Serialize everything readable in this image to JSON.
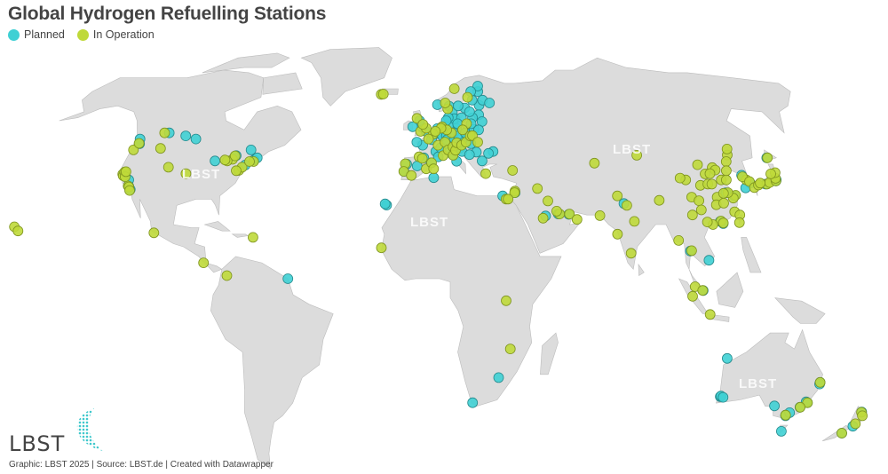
{
  "title": "Global Hydrogen Refuelling Stations",
  "legend": [
    {
      "label": "Planned",
      "color": "#3fd0d4"
    },
    {
      "label": "In Operation",
      "color": "#bfd93a"
    }
  ],
  "footer": "Graphic: LBST 2025 | Source: LBST.de | Created with Datawrapper",
  "logo_text": "LBST",
  "watermark": "LBST",
  "map": {
    "projection": "Robinson",
    "land_color": "#dcdcdc",
    "border_color": "#ffffff"
  },
  "stations": {
    "planned": [
      [
        -123,
        49
      ],
      [
        -122,
        47.5
      ],
      [
        -118,
        34
      ],
      [
        -117,
        33
      ],
      [
        -119,
        36
      ],
      [
        -79,
        43.7
      ],
      [
        -73.6,
        45.5
      ],
      [
        -71,
        42.3
      ],
      [
        -74,
        40.7
      ],
      [
        -70,
        43
      ],
      [
        -99,
        49
      ],
      [
        -104,
        50
      ],
      [
        -87,
        42
      ],
      [
        -112,
        51
      ],
      [
        -52,
        5
      ],
      [
        -9,
        38.7
      ],
      [
        -8,
        41
      ],
      [
        -3.7,
        40.4
      ],
      [
        2,
        41.4
      ],
      [
        -1,
        43
      ],
      [
        2.3,
        48.8
      ],
      [
        4,
        45
      ],
      [
        5,
        43.3
      ],
      [
        -1.5,
        47
      ],
      [
        -4,
        48
      ],
      [
        -0.1,
        51.5
      ],
      [
        -2,
        53
      ],
      [
        -3,
        55
      ],
      [
        -6,
        53
      ],
      [
        4.9,
        52.4
      ],
      [
        4.4,
        50.8
      ],
      [
        6,
        51
      ],
      [
        7,
        50
      ],
      [
        8.7,
        50
      ],
      [
        9,
        48.8
      ],
      [
        11.5,
        48.1
      ],
      [
        13.4,
        52.5
      ],
      [
        10,
        53.5
      ],
      [
        12,
        51
      ],
      [
        14,
        50
      ],
      [
        16.4,
        48.2
      ],
      [
        19,
        47.5
      ],
      [
        21,
        52.2
      ],
      [
        18,
        50
      ],
      [
        17,
        51
      ],
      [
        14,
        46
      ],
      [
        15,
        45
      ],
      [
        12.5,
        41.9
      ],
      [
        9,
        45.5
      ],
      [
        11,
        44
      ],
      [
        8.5,
        47.4
      ],
      [
        6.1,
        46.2
      ],
      [
        10.7,
        59.9
      ],
      [
        5.3,
        60.4
      ],
      [
        18,
        59.3
      ],
      [
        12,
        57.7
      ],
      [
        13,
        55.6
      ],
      [
        12.6,
        55.7
      ],
      [
        10,
        56
      ],
      [
        9,
        55
      ],
      [
        24.9,
        60.2
      ],
      [
        25.5,
        65
      ],
      [
        22,
        62
      ],
      [
        27,
        62
      ],
      [
        30,
        61
      ],
      [
        24,
        57
      ],
      [
        25,
        54.7
      ],
      [
        21,
        56
      ],
      [
        20,
        54
      ],
      [
        23,
        52
      ],
      [
        16,
        56
      ],
      [
        15,
        60
      ],
      [
        28,
        45
      ],
      [
        26,
        44.4
      ],
      [
        23,
        42
      ],
      [
        21,
        44.8
      ],
      [
        18,
        44
      ],
      [
        20,
        58
      ],
      [
        26,
        67
      ],
      [
        22,
        65
      ],
      [
        14,
        54
      ],
      [
        35,
        32
      ],
      [
        55,
        25.2
      ],
      [
        51,
        25.3
      ],
      [
        46,
        24.7
      ],
      [
        30,
        31
      ],
      [
        77,
        28.6
      ],
      [
        104,
        1.3
      ],
      [
        118,
        32
      ],
      [
        121,
        31
      ],
      [
        113,
        23
      ],
      [
        114,
        22.3
      ],
      [
        127,
        37.5
      ],
      [
        129,
        35
      ],
      [
        126.5,
        33.5
      ],
      [
        140,
        36
      ],
      [
        139.7,
        35.7
      ],
      [
        141,
        43
      ],
      [
        135,
        34.7
      ],
      [
        100,
        13.7
      ],
      [
        106.7,
        10.8
      ],
      [
        18.4,
        -33.9
      ],
      [
        28,
        -26
      ],
      [
        -15.4,
        28.1
      ],
      [
        -16,
        28.5
      ],
      [
        3,
        36.7
      ],
      [
        115.8,
        -32
      ],
      [
        116,
        -31.8
      ],
      [
        117,
        -32.2
      ],
      [
        144.9,
        -37.8
      ],
      [
        145,
        -38
      ],
      [
        151.2,
        -33.9
      ],
      [
        153,
        -27.5
      ],
      [
        147,
        -42.9
      ],
      [
        149,
        -35.3
      ],
      [
        138.6,
        -34.9
      ],
      [
        174.8,
        -36.8
      ],
      [
        175,
        -41.3
      ],
      [
        172.6,
        -43.5
      ],
      [
        146,
        -37
      ],
      [
        153,
        -28
      ],
      [
        150.5,
        -33.6
      ],
      [
        115,
        -20
      ]
    ],
    "in_operation": [
      [
        -157.8,
        21.3
      ],
      [
        -156,
        20
      ],
      [
        -122.4,
        37.8
      ],
      [
        -121.9,
        37.3
      ],
      [
        -122,
        38.5
      ],
      [
        -118.3,
        34.1
      ],
      [
        -117.9,
        33.8
      ],
      [
        -117.1,
        32.7
      ],
      [
        -121,
        37
      ],
      [
        -121.5,
        38.6
      ],
      [
        -123,
        45.5
      ],
      [
        -122.3,
        47.6
      ],
      [
        -114,
        51
      ],
      [
        -112,
        46
      ],
      [
        -105,
        40
      ],
      [
        -97,
        38
      ],
      [
        -80,
        42.5
      ],
      [
        -82,
        42
      ],
      [
        -83,
        42.3
      ],
      [
        -79.4,
        43.6
      ],
      [
        -76,
        39
      ],
      [
        -75,
        40
      ],
      [
        -71,
        41.8
      ],
      [
        -72.7,
        41.8
      ],
      [
        -77,
        38.9
      ],
      [
        -104,
        19.4
      ],
      [
        -84,
        10
      ],
      [
        -75,
        6
      ],
      [
        -66,
        18
      ],
      [
        -8.6,
        41.1
      ],
      [
        -9.1,
        38.7
      ],
      [
        -3,
        43.3
      ],
      [
        -1.6,
        42.8
      ],
      [
        0,
        39.5
      ],
      [
        2.2,
        41.4
      ],
      [
        -6,
        37.4
      ],
      [
        3,
        50.6
      ],
      [
        7,
        43.7
      ],
      [
        5,
        47
      ],
      [
        1,
        49
      ],
      [
        8,
        48
      ],
      [
        9.2,
        45.5
      ],
      [
        11.3,
        46.5
      ],
      [
        11.2,
        43.8
      ],
      [
        12.3,
        45.4
      ],
      [
        13,
        47.8
      ],
      [
        15,
        47
      ],
      [
        17,
        48
      ],
      [
        19,
        50
      ],
      [
        18,
        54
      ],
      [
        20,
        50.1
      ],
      [
        22,
        48
      ],
      [
        -22,
        64
      ],
      [
        -21,
        64.1
      ],
      [
        10,
        59
      ],
      [
        9,
        61
      ],
      [
        14,
        66
      ],
      [
        20,
        63
      ],
      [
        11,
        51
      ],
      [
        7,
        53
      ],
      [
        9,
        52
      ],
      [
        6.5,
        52.5
      ],
      [
        4,
        51.5
      ],
      [
        -2.5,
        51.5
      ],
      [
        0,
        52.5
      ],
      [
        -4.2,
        55.8
      ],
      [
        -1.5,
        53.8
      ],
      [
        16,
        52
      ],
      [
        3,
        39.5
      ],
      [
        24,
        38
      ],
      [
        35,
        39
      ],
      [
        35,
        32.5
      ],
      [
        34.8,
        32
      ],
      [
        51.5,
        25.3
      ],
      [
        45,
        24
      ],
      [
        55.3,
        25.3
      ],
      [
        58,
        23.6
      ],
      [
        67,
        24.8
      ],
      [
        73,
        19
      ],
      [
        77.5,
        13
      ],
      [
        80,
        23
      ],
      [
        78,
        28
      ],
      [
        75,
        31
      ],
      [
        69,
        41.3
      ],
      [
        104,
        30.6
      ],
      [
        106.5,
        29.5
      ],
      [
        108.9,
        34.3
      ],
      [
        112,
        34.7
      ],
      [
        114,
        30.6
      ],
      [
        116.4,
        39.9
      ],
      [
        117.2,
        39.1
      ],
      [
        118,
        36
      ],
      [
        120,
        36
      ],
      [
        121.5,
        31.2
      ],
      [
        120.2,
        30.3
      ],
      [
        118.8,
        32
      ],
      [
        117,
        31.8
      ],
      [
        113.3,
        23.1
      ],
      [
        114.1,
        22.5
      ],
      [
        110,
        22
      ],
      [
        108,
        22.8
      ],
      [
        102.7,
        25
      ],
      [
        106.6,
        26.6
      ],
      [
        112.9,
        28.2
      ],
      [
        115.9,
        28.7
      ],
      [
        119.3,
        26
      ],
      [
        113.6,
        34.7
      ],
      [
        112.5,
        37.9
      ],
      [
        125.3,
        43.9
      ],
      [
        123.4,
        41.8
      ],
      [
        126.6,
        45.8
      ],
      [
        121.6,
        38.9
      ],
      [
        114.5,
        38
      ],
      [
        111,
        40.8
      ],
      [
        103.8,
        36
      ],
      [
        101.8,
        36.6
      ],
      [
        87.6,
        43.8
      ],
      [
        91,
        29.6
      ],
      [
        128,
        36
      ],
      [
        127,
        37
      ],
      [
        129,
        35.5
      ],
      [
        130,
        33.6
      ],
      [
        132,
        34.4
      ],
      [
        135.5,
        34.7
      ],
      [
        136.9,
        35.2
      ],
      [
        139.7,
        35.7
      ],
      [
        140,
        36.5
      ],
      [
        141,
        38.3
      ],
      [
        139,
        37.9
      ],
      [
        141.3,
        43
      ],
      [
        133,
        35
      ],
      [
        121,
        25
      ],
      [
        120.3,
        22.6
      ],
      [
        100.5,
        13.8
      ],
      [
        101,
        2.5
      ],
      [
        106.8,
        -6.2
      ],
      [
        100,
        -0.5
      ],
      [
        103.8,
        1.35
      ],
      [
        96,
        17
      ],
      [
        44,
        33.3
      ],
      [
        47.5,
        29.4
      ],
      [
        50.5,
        26.2
      ],
      [
        153,
        -27.5
      ],
      [
        151.2,
        -33.9
      ],
      [
        144.9,
        -37.8
      ],
      [
        149.1,
        -35.3
      ],
      [
        174.8,
        -36.9
      ],
      [
        176,
        -38
      ],
      [
        172.6,
        -43.5
      ],
      [
        175.3,
        -40.5
      ],
      [
        31.2,
        30
      ],
      [
        32,
        30
      ],
      [
        30,
        -1.9
      ],
      [
        32,
        -17
      ],
      [
        -17,
        14.7
      ]
    ]
  }
}
